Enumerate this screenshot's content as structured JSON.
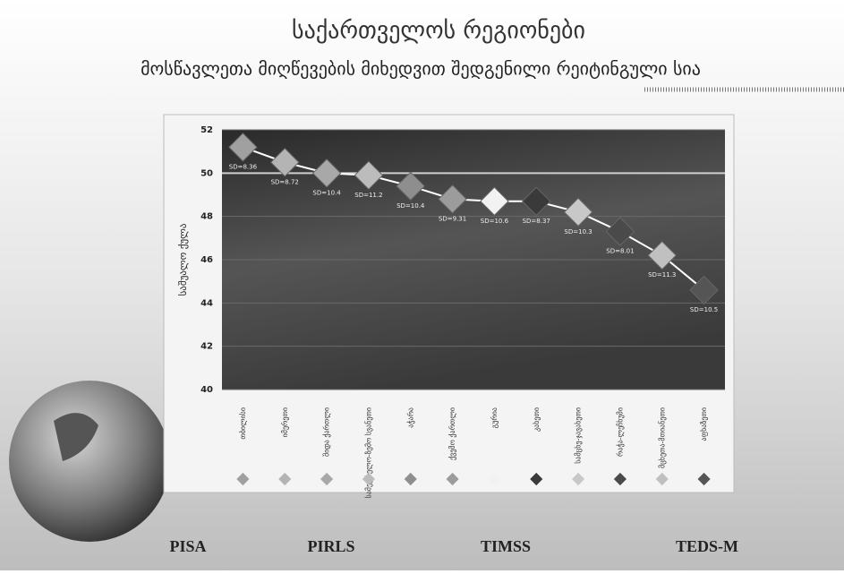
{
  "slide": {
    "title": "საქართველოს რეგიონები",
    "subtitle": "მოსწავლეთა მიღწევების მიხედვით შედგენილი რეიტინგული სია",
    "programs": [
      "PISA",
      "PIRLS",
      "TIMSS",
      "TEDS-M"
    ]
  },
  "chart_data": {
    "type": "line",
    "y_label": "საშუალო ქულა",
    "categories": [
      "თბილისი",
      "იმერეთი",
      "შიდა ქართლი",
      "სამეგრელო-ზემო სვანეთი",
      "აჭარა",
      "ქვემო ქართლი",
      "გურია",
      "კახეთი",
      "სამცხე-ჯავახეთი",
      "რაჭა-ლეჩხუმი",
      "მცხეთა-მთიანეთი",
      "აფხაზეთი"
    ],
    "values": [
      51.2,
      50.5,
      50.0,
      49.9,
      49.4,
      48.8,
      48.7,
      48.7,
      48.2,
      47.3,
      46.2,
      44.6
    ],
    "annotations": [
      "SD=8.36",
      "SD=8.72",
      "SD=10.4",
      "SD=11.2",
      "SD=10.4",
      "SD=9.31",
      "SD=10.6",
      "SD=8.37",
      "SD=10.3",
      "SD=8.01",
      "SD=11.3",
      "SD=10.5"
    ],
    "colors": [
      "#a0a0a0",
      "#b4b4b4",
      "#a8a8a8",
      "#bcbcbc",
      "#8e8e8e",
      "#9c9c9c",
      "#f2f2f2",
      "#3a3a3a",
      "#c8c8c8",
      "#4a4a4a",
      "#c0c0c0",
      "#555555"
    ],
    "line_color": "#ffffff",
    "reference_line": 50,
    "ylim": [
      40,
      52
    ],
    "yticks": [
      40,
      42,
      44,
      46,
      48,
      50,
      52
    ],
    "grid": true
  }
}
